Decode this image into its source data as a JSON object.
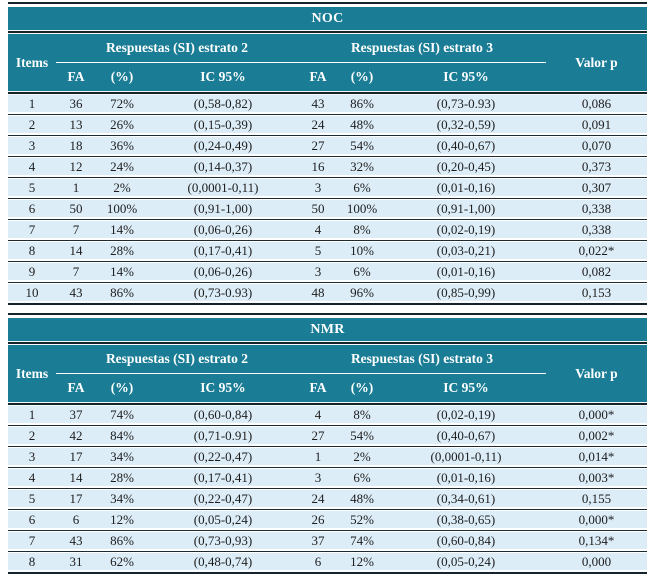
{
  "colors": {
    "header_teal": "#1a7d95",
    "row_blue": "#dcedf8",
    "rule_dark": "#15232a",
    "header_text": "#ffffff",
    "body_text": "#1d1d1d"
  },
  "tables": [
    {
      "title": "NOC",
      "header": {
        "items": "Items",
        "group2": "Respuestas (SI) estrato 2",
        "group3": "Respuestas (SI) estrato 3",
        "fa": "FA",
        "pct": "(%)",
        "ic": "IC 95%",
        "valor_p": "Valor p"
      },
      "rows": [
        [
          "1",
          "36",
          "72%",
          "(0,58-0,82)",
          "43",
          "86%",
          "(0,73-0.93)",
          "0,086"
        ],
        [
          "2",
          "13",
          "26%",
          "(0,15-0,39)",
          "24",
          "48%",
          "(0,32-0,59)",
          "0,091"
        ],
        [
          "3",
          "18",
          "36%",
          "(0,24-0,49)",
          "27",
          "54%",
          "(0,40-0,67)",
          "0,070"
        ],
        [
          "4",
          "12",
          "24%",
          "(0,14-0,37)",
          "16",
          "32%",
          "(0,20-0,45)",
          "0,373"
        ],
        [
          "5",
          "1",
          "2%",
          "(0,0001-0,11)",
          "3",
          "6%",
          "(0,01-0,16)",
          "0,307"
        ],
        [
          "6",
          "50",
          "100%",
          "(0,91-1,00)",
          "50",
          "100%",
          "(0,91-1,00)",
          "0,338"
        ],
        [
          "7",
          "7",
          "14%",
          "(0,06-0,26)",
          "4",
          "8%",
          "(0,02-0,19)",
          "0,338"
        ],
        [
          "8",
          "14",
          "28%",
          "(0,17-0,41)",
          "5",
          "10%",
          "(0,03-0,21)",
          "0,022*"
        ],
        [
          "9",
          "7",
          "14%",
          "(0,06-0,26)",
          "3",
          "6%",
          "(0,01-0,16)",
          "0,082"
        ],
        [
          "10",
          "43",
          "86%",
          "(0,73-0.93)",
          "48",
          "96%",
          "(0,85-0,99)",
          "0,153"
        ]
      ]
    },
    {
      "title": "NMR",
      "header": {
        "items": "Items",
        "group2": "Respuestas (SI) estrato 2",
        "group3": "Respuestas (SI) estrato 3",
        "fa": "FA",
        "pct": "(%)",
        "ic": "IC 95%",
        "valor_p": "Valor p"
      },
      "rows": [
        [
          "1",
          "37",
          "74%",
          "(0,60-0,84)",
          "4",
          "8%",
          "(0,02-0,19)",
          "0,000*"
        ],
        [
          "2",
          "42",
          "84%",
          "(0,71-0.91)",
          "27",
          "54%",
          "(0,40-0,67)",
          "0,002*"
        ],
        [
          "3",
          "17",
          "34%",
          "(0,22-0,47)",
          "1",
          "2%",
          "(0,0001-0,11)",
          "0,014*"
        ],
        [
          "4",
          "14",
          "28%",
          "(0,17-0,41)",
          "3",
          "6%",
          "(0,01-0,16)",
          "0,003*"
        ],
        [
          "5",
          "17",
          "34%",
          "(0,22-0,47)",
          "24",
          "48%",
          "(0,34-0,61)",
          "0,155"
        ],
        [
          "6",
          "6",
          "12%",
          "(0,05-0,24)",
          "26",
          "52%",
          "(0,38-0,65)",
          "0,000*"
        ],
        [
          "7",
          "43",
          "86%",
          "(0,73-0,93)",
          "37",
          "74%",
          "(0,60-0,84)",
          "0,134*"
        ],
        [
          "8",
          "31",
          "62%",
          "(0,48-0,74)",
          "6",
          "12%",
          "(0,05-0,24)",
          "0,000"
        ]
      ]
    }
  ]
}
